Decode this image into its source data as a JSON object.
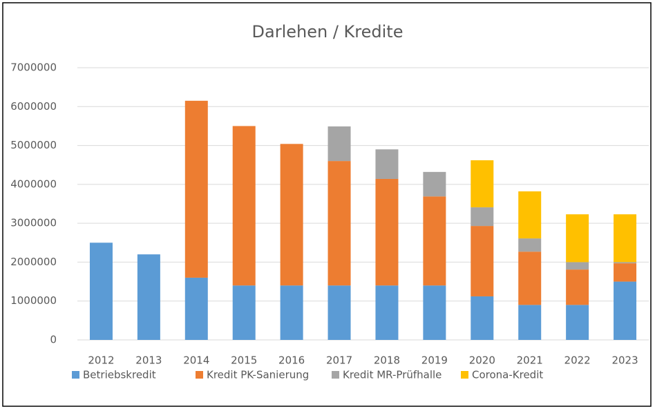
{
  "chart_data": {
    "type": "stacked-bar",
    "title": "Darlehen / Kredite",
    "categories": [
      "2012",
      "2013",
      "2014",
      "2015",
      "2016",
      "2017",
      "2018",
      "2019",
      "2020",
      "2021",
      "2022",
      "2023"
    ],
    "series": [
      {
        "name": "Betriebskredit",
        "color": "#5b9bd5",
        "values": [
          2500000,
          2200000,
          1600000,
          1400000,
          1400000,
          1400000,
          1400000,
          1400000,
          1120000,
          900000,
          900000,
          1500000
        ]
      },
      {
        "name": "Kredit PK-Sanierung",
        "color": "#ed7d31",
        "values": [
          null,
          null,
          4550000,
          4100000,
          3640000,
          3200000,
          2740000,
          2290000,
          1810000,
          1370000,
          910000,
          470000
        ]
      },
      {
        "name": "Kredit MR-Prüfhalle",
        "color": "#a5a5a5",
        "values": [
          null,
          null,
          null,
          null,
          null,
          890000,
          760000,
          630000,
          480000,
          340000,
          190000,
          30000
        ]
      },
      {
        "name": "Corona-Kredit",
        "color": "#ffc000",
        "values": [
          null,
          null,
          null,
          null,
          null,
          null,
          null,
          null,
          1210000,
          1210000,
          1230000,
          1230000
        ]
      }
    ],
    "ylim": [
      0,
      7000000
    ],
    "yticks": [
      0,
      1000000,
      2000000,
      3000000,
      4000000,
      5000000,
      6000000,
      7000000
    ],
    "grid": true,
    "legend": "bottom"
  }
}
